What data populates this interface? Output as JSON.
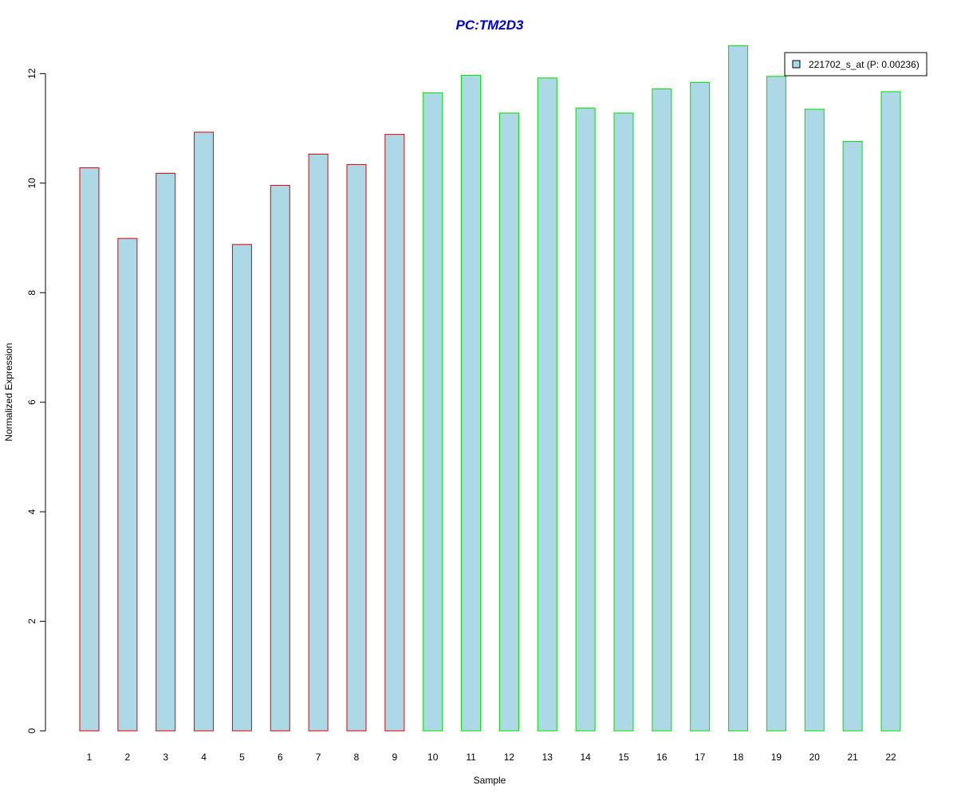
{
  "chart_data": {
    "type": "bar",
    "title": "PC:TM2D3",
    "xlabel": "Sample",
    "ylabel": "Normalized Expression",
    "categories": [
      "1",
      "2",
      "3",
      "4",
      "5",
      "6",
      "7",
      "8",
      "9",
      "10",
      "11",
      "12",
      "13",
      "14",
      "15",
      "16",
      "17",
      "18",
      "19",
      "20",
      "21",
      "22"
    ],
    "series": [
      {
        "name": "221702_s_at (P: 0.00236)",
        "values": [
          10.28,
          8.99,
          10.18,
          10.93,
          8.88,
          9.96,
          10.53,
          10.34,
          10.89,
          11.65,
          11.97,
          11.28,
          11.92,
          11.37,
          11.28,
          11.72,
          11.84,
          12.51,
          11.95,
          11.35,
          10.76,
          11.67
        ]
      }
    ],
    "groups": [
      {
        "samples": [
          1,
          9
        ],
        "border_color": "#e00000"
      },
      {
        "samples": [
          10,
          22
        ],
        "border_color": "#00e000"
      }
    ],
    "ylim": [
      0,
      12.5
    ],
    "yticks": [
      0,
      2,
      4,
      6,
      8,
      10,
      12
    ],
    "grid": false,
    "legend_position": "top-right",
    "colors": {
      "bar_fill": "#add8e6",
      "title": "#0000cc"
    }
  }
}
